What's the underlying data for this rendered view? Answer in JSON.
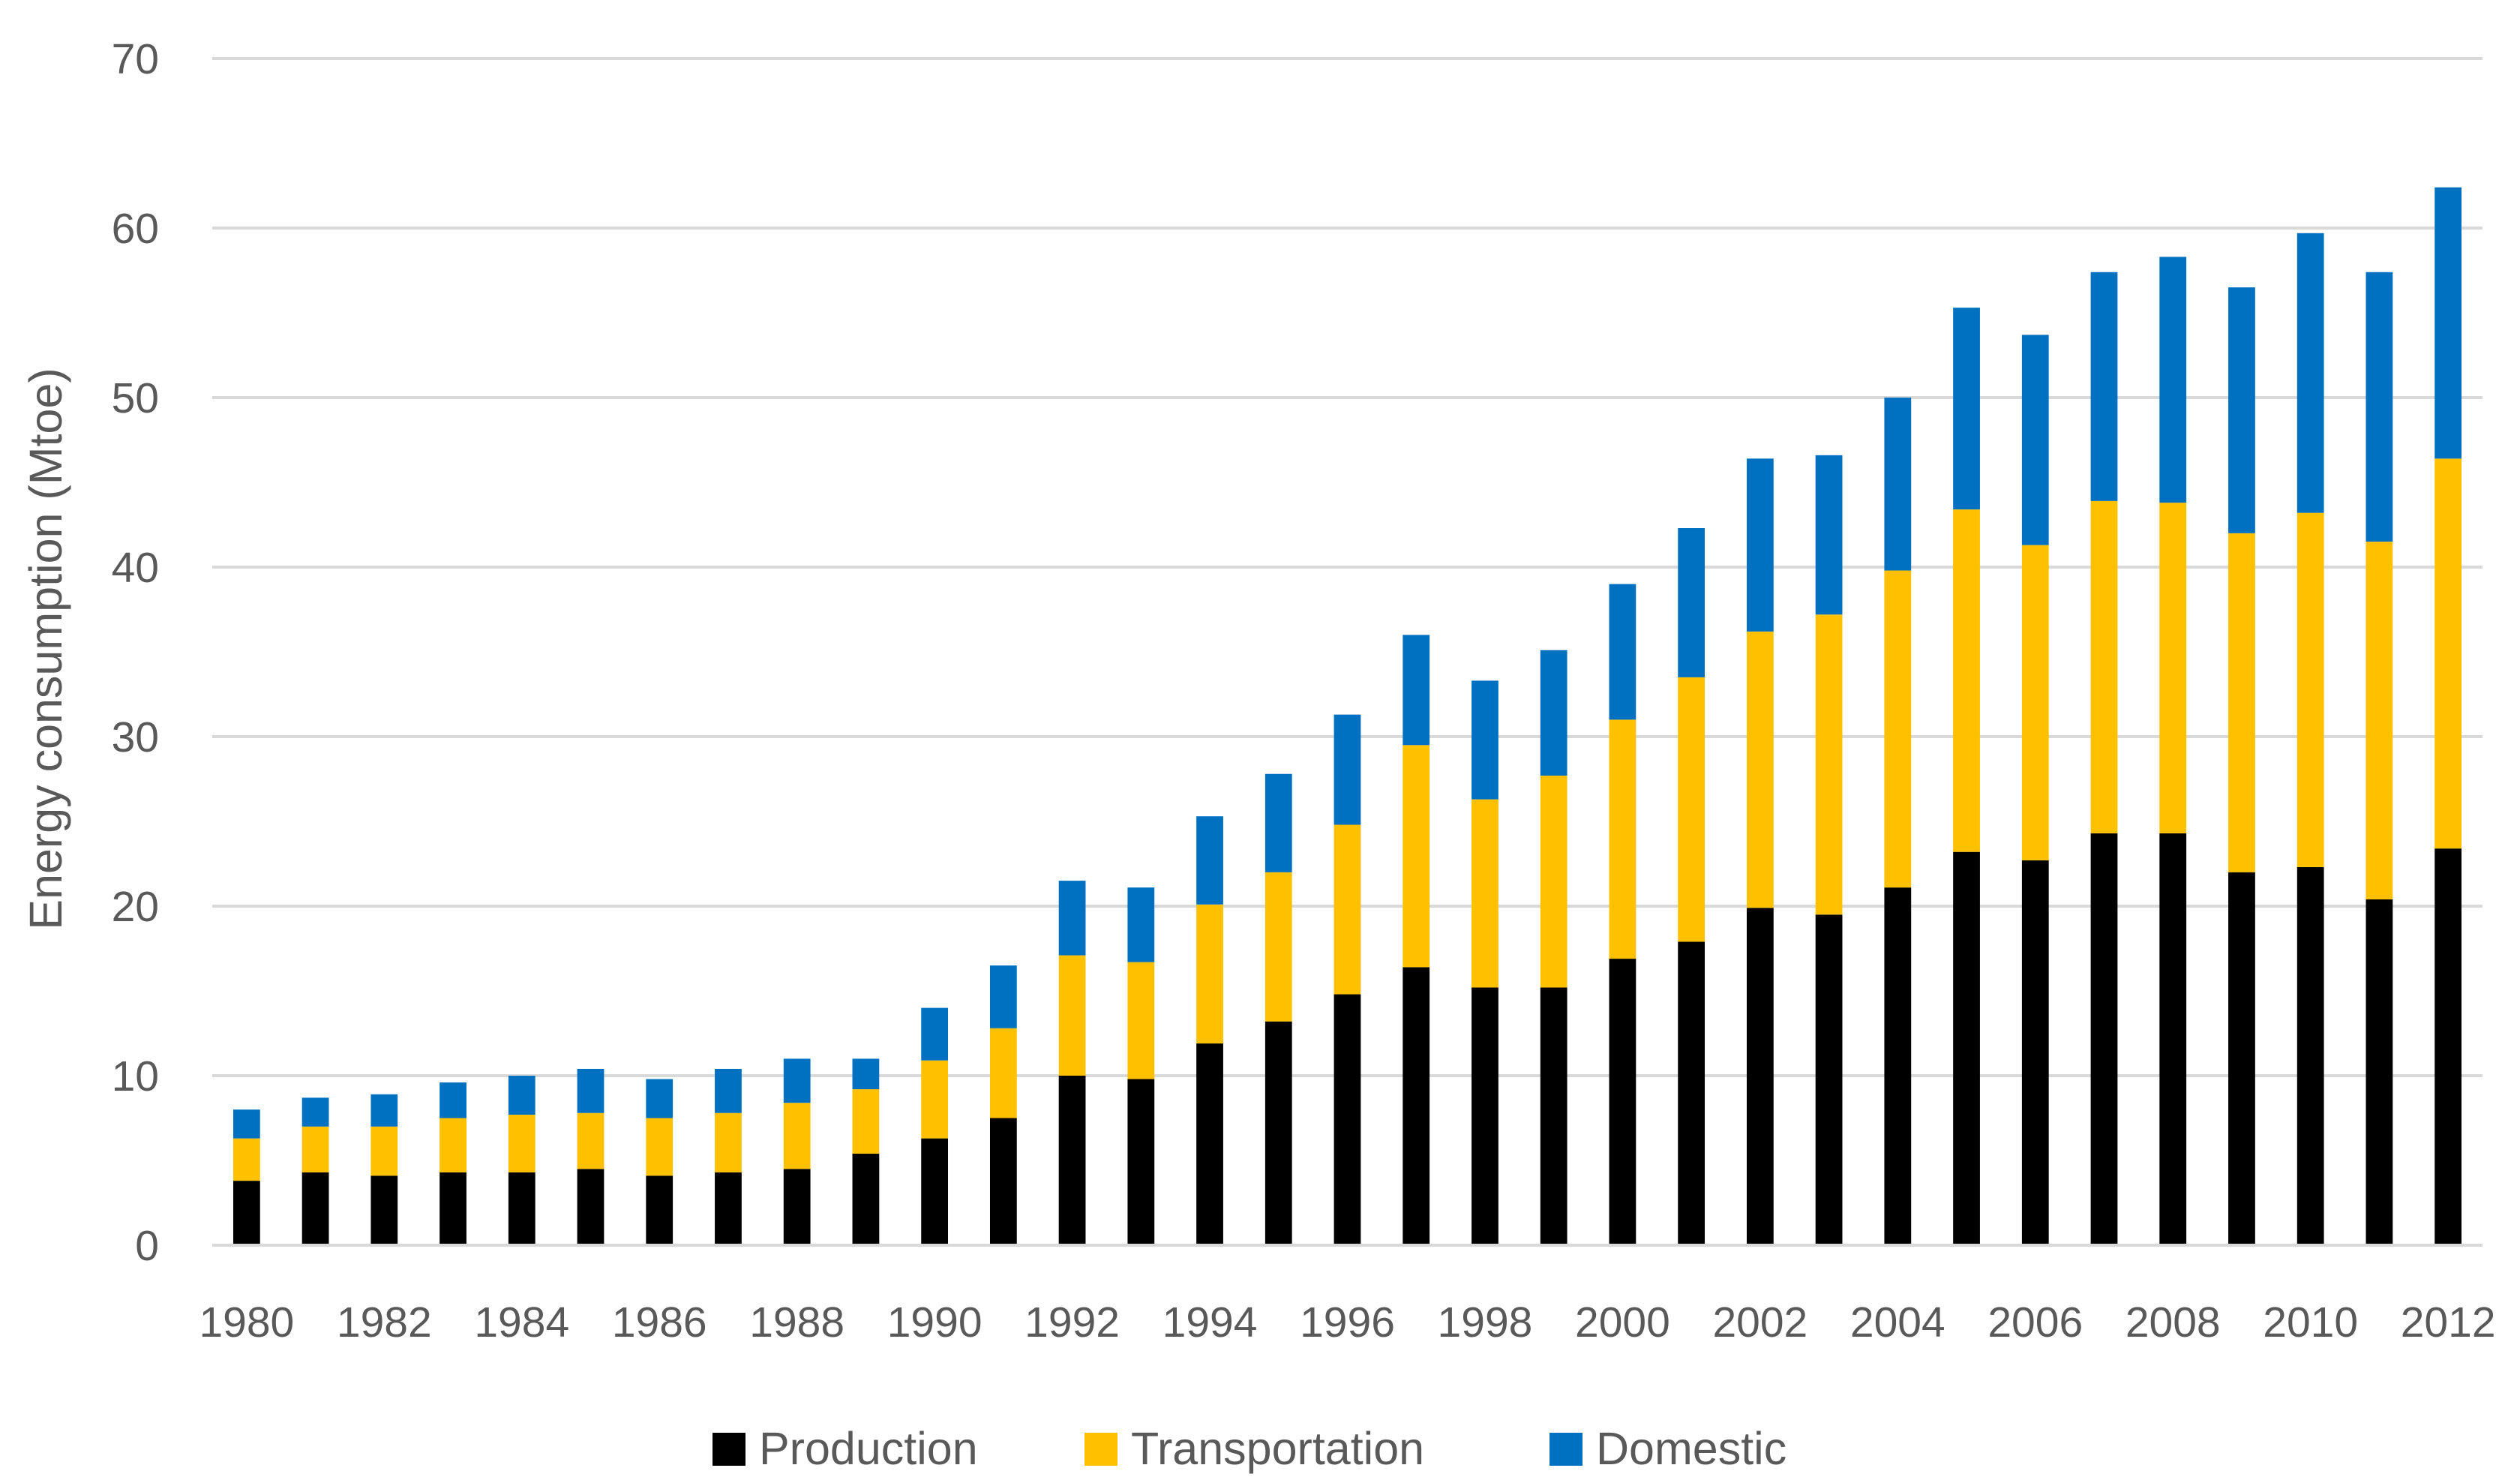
{
  "chart_data": {
    "type": "bar",
    "stacked": true,
    "title": "",
    "xlabel": "",
    "ylabel": "Energy consumption (Mtoe)",
    "ylim": [
      0,
      70
    ],
    "yticks": [
      0,
      10,
      20,
      30,
      40,
      50,
      60,
      70
    ],
    "grid": true,
    "legend_position": "bottom",
    "categories": [
      "1980",
      "1981",
      "1982",
      "1983",
      "1984",
      "1985",
      "1986",
      "1987",
      "1988",
      "1989",
      "1990",
      "1991",
      "1992",
      "1993",
      "1994",
      "1995",
      "1996",
      "1997",
      "1998",
      "1999",
      "2000",
      "2001",
      "2002",
      "2003",
      "2004",
      "2005",
      "2006",
      "2007",
      "2008",
      "2009",
      "2010",
      "2011",
      "2012"
    ],
    "category_labels": [
      "1980",
      "",
      "1982",
      "",
      "1984",
      "",
      "1986",
      "",
      "1988",
      "",
      "1990",
      "",
      "1992",
      "",
      "1994",
      "",
      "1996",
      "",
      "1998",
      "",
      "2000",
      "",
      "2002",
      "",
      "2004",
      "",
      "2006",
      "",
      "2008",
      "",
      "2010",
      "",
      "2012"
    ],
    "series": [
      {
        "name": "Production",
        "color": "#000000",
        "values": [
          3.8,
          4.3,
          4.1,
          4.3,
          4.3,
          4.5,
          4.1,
          4.3,
          4.5,
          5.4,
          6.3,
          7.5,
          10.0,
          9.8,
          11.9,
          13.2,
          14.8,
          16.4,
          15.2,
          15.2,
          16.9,
          17.9,
          19.9,
          19.5,
          21.1,
          23.2,
          22.7,
          24.3,
          24.3,
          22.0,
          22.3,
          20.4,
          23.4
        ]
      },
      {
        "name": "Transportation",
        "color": "#ffc000",
        "values": [
          2.5,
          2.7,
          2.9,
          3.2,
          3.4,
          3.3,
          3.4,
          3.5,
          3.9,
          3.8,
          4.6,
          5.3,
          7.1,
          6.9,
          8.2,
          8.8,
          10.0,
          13.1,
          11.1,
          12.5,
          14.1,
          15.6,
          16.3,
          17.7,
          18.7,
          20.2,
          18.6,
          19.6,
          19.5,
          20.0,
          20.9,
          21.1,
          23.0
        ]
      },
      {
        "name": "Domestic",
        "color": "#0070c0",
        "values": [
          1.7,
          1.7,
          1.9,
          2.1,
          2.3,
          2.6,
          2.3,
          2.6,
          2.6,
          1.8,
          3.1,
          3.7,
          4.4,
          4.4,
          5.2,
          5.8,
          6.5,
          6.5,
          7.0,
          7.4,
          8.0,
          8.8,
          10.2,
          9.4,
          10.2,
          11.9,
          12.4,
          13.5,
          14.5,
          14.5,
          16.5,
          15.9,
          16.0
        ]
      }
    ]
  }
}
